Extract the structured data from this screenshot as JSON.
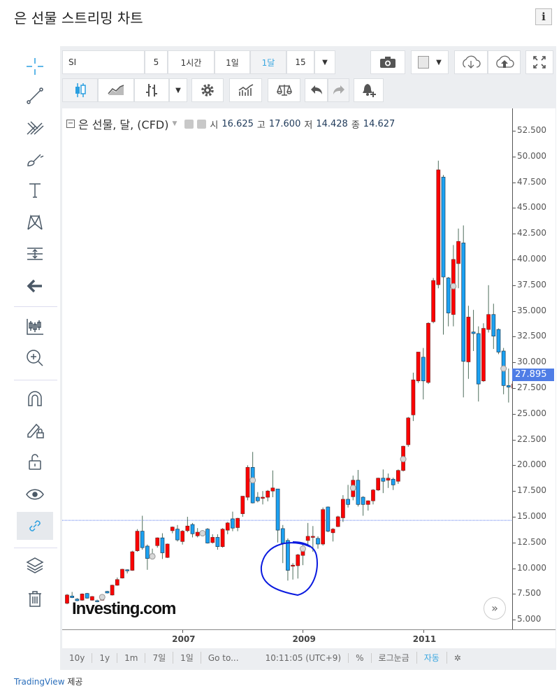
{
  "page": {
    "title": "은 선물 스트리밍 차트",
    "info_icon": "info-icon",
    "credit_link": "TradingView",
    "credit_suffix": "제공"
  },
  "toolbar": {
    "symbol": "SI",
    "intervals": [
      "5",
      "1시간",
      "1일",
      "1달",
      "15"
    ],
    "active_interval": "1달",
    "icons": [
      "camera-icon",
      "color-swatch-icon",
      "cloud-download-icon",
      "cloud-upload-icon",
      "fullscreen-icon",
      "candlestick-icon",
      "line-chart-icon",
      "bar-chart-icon",
      "settings-icon",
      "indicators-icon",
      "compare-scale-icon",
      "undo-icon",
      "redo-icon",
      "add-alert-icon"
    ]
  },
  "left_tools": [
    "crosshair-icon",
    "trend-line-icon",
    "pitchfork-icon",
    "brush-icon",
    "text-icon",
    "pattern-icon",
    "measure-icon",
    "arrow-back-icon",
    "candles-icon",
    "zoom-in-icon",
    "magnet-icon",
    "drawing-lock-icon",
    "unlock-icon",
    "eye-icon",
    "link-icon",
    "layers-icon",
    "trash-icon"
  ],
  "legend": {
    "name": "은 선물, 달, (CFD)",
    "open_label": "시",
    "open": "16.625",
    "high_label": "고",
    "high": "17.600",
    "low_label": "저",
    "low": "14.428",
    "close_label": "종",
    "close": "14.627"
  },
  "price_tag": "27.895",
  "watermark": "Investing.com",
  "bottom_bar": {
    "items": [
      "10y",
      "1y",
      "1m",
      "7일",
      "1일",
      "Go to...",
      "10:11:05 (UTC+9)",
      "%",
      "로그눈금",
      "자동"
    ],
    "active": "자동"
  },
  "colors": {
    "up": "#ff0000",
    "down": "#1ba1f2",
    "wick": "#4e6e5c",
    "annotation": "#0a1adf",
    "hline": "#5577ee",
    "accent": "#3aa7e0"
  },
  "chart_data": {
    "type": "candlestick",
    "ylim": [
      5,
      52.5
    ],
    "y_ticks": [
      "52.500",
      "50.000",
      "47.500",
      "45.000",
      "42.500",
      "40.000",
      "37.500",
      "35.000",
      "32.500",
      "30.000",
      "27.500",
      "25.000",
      "22.500",
      "20.000",
      "17.500",
      "15.000",
      "12.500",
      "10.000",
      "7.500",
      "5.000"
    ],
    "x_ticks": [
      {
        "label": "2007",
        "date": "2007-01"
      },
      {
        "label": "2009",
        "date": "2009-01"
      },
      {
        "label": "2011",
        "date": "2011-01"
      }
    ],
    "horizontal_line": 14.65,
    "annotation": "hand-drawn circle around 2008-10 to 2009-01 lows",
    "event_markers": [
      {
        "date": "2005-09",
        "value": 7.2
      },
      {
        "date": "2006-07",
        "value": 11.15
      },
      {
        "date": "2007-05",
        "value": 13.4
      },
      {
        "date": "2008-03",
        "value": 18.55
      },
      {
        "date": "2009-01",
        "value": 11.9
      },
      {
        "date": "2009-11",
        "value": 17.8
      },
      {
        "date": "2010-09",
        "value": 20.6
      },
      {
        "date": "2011-07",
        "value": 37.4
      },
      {
        "date": "2012-05",
        "value": 29.4
      }
    ],
    "fields": [
      "date",
      "open",
      "high",
      "low",
      "close"
    ],
    "candles": [
      [
        "2005-02",
        6.6,
        7.5,
        6.5,
        7.4
      ],
      [
        "2005-03",
        7.3,
        7.7,
        7.1,
        7.15
      ],
      [
        "2005-04",
        7.0,
        7.1,
        6.8,
        6.85
      ],
      [
        "2005-05",
        6.9,
        7.55,
        6.85,
        7.5
      ],
      [
        "2005-06",
        7.55,
        7.6,
        7.05,
        7.1
      ],
      [
        "2005-07",
        6.9,
        7.3,
        6.85,
        7.25
      ],
      [
        "2005-08",
        6.85,
        6.95,
        6.7,
        6.8
      ],
      [
        "2005-09",
        6.9,
        7.45,
        6.85,
        7.4
      ],
      [
        "2005-10",
        7.75,
        7.8,
        7.55,
        7.6
      ],
      [
        "2005-11",
        7.4,
        8.4,
        7.35,
        8.35
      ],
      [
        "2005-12",
        8.35,
        9.1,
        8.3,
        8.9
      ],
      [
        "2006-01",
        9.05,
        9.95,
        9.0,
        9.9
      ],
      [
        "2006-02",
        9.85,
        9.9,
        9.5,
        9.75
      ],
      [
        "2006-03",
        9.8,
        11.7,
        9.75,
        11.6
      ],
      [
        "2006-04",
        11.7,
        13.8,
        11.6,
        13.6
      ],
      [
        "2006-05",
        13.6,
        15.1,
        11.8,
        12.0
      ],
      [
        "2006-06",
        12.15,
        12.3,
        9.85,
        10.95
      ],
      [
        "2006-07",
        11.4,
        11.9,
        10.9,
        11.2
      ],
      [
        "2006-08",
        12.2,
        13.0,
        12.0,
        12.95
      ],
      [
        "2006-09",
        12.95,
        13.4,
        10.9,
        11.5
      ],
      [
        "2006-10",
        11.05,
        12.4,
        11.0,
        12.35
      ],
      [
        "2006-11",
        13.65,
        14.05,
        13.4,
        14.0
      ],
      [
        "2006-12",
        13.8,
        14.2,
        12.6,
        12.75
      ],
      [
        "2007-01",
        12.6,
        13.7,
        12.3,
        13.6
      ],
      [
        "2007-02",
        13.65,
        15.0,
        13.5,
        14.1
      ],
      [
        "2007-03",
        14.25,
        14.4,
        13.0,
        13.35
      ],
      [
        "2007-04",
        13.15,
        13.9,
        13.0,
        13.5
      ],
      [
        "2007-05",
        13.4,
        13.5,
        13.1,
        13.3
      ],
      [
        "2007-06",
        13.8,
        13.9,
        12.4,
        12.45
      ],
      [
        "2007-07",
        12.5,
        13.3,
        12.4,
        13.0
      ],
      [
        "2007-08",
        13.0,
        13.3,
        11.8,
        12.1
      ],
      [
        "2007-09",
        12.1,
        13.9,
        12.0,
        13.8
      ],
      [
        "2007-10",
        13.7,
        14.5,
        13.3,
        14.4
      ],
      [
        "2007-11",
        14.8,
        15.5,
        13.6,
        13.9
      ],
      [
        "2007-12",
        13.95,
        14.9,
        13.6,
        14.85
      ],
      [
        "2008-01",
        15.3,
        17.0,
        15.0,
        17.0
      ],
      [
        "2008-02",
        16.9,
        20.0,
        16.6,
        19.8
      ],
      [
        "2008-03",
        19.8,
        21.3,
        16.3,
        16.35
      ],
      [
        "2008-04",
        16.9,
        17.4,
        16.4,
        16.55
      ],
      [
        "2008-05",
        16.85,
        17.5,
        16.2,
        16.9
      ],
      [
        "2008-06",
        16.9,
        17.6,
        16.5,
        17.5
      ],
      [
        "2008-07",
        17.5,
        19.5,
        16.9,
        17.8
      ],
      [
        "2008-08",
        17.7,
        17.7,
        12.5,
        13.7
      ],
      [
        "2008-09",
        13.85,
        14.2,
        10.5,
        12.45
      ],
      [
        "2008-10",
        12.7,
        12.9,
        8.8,
        9.8
      ],
      [
        "2008-11",
        10.3,
        10.5,
        8.9,
        10.3
      ],
      [
        "2008-12",
        10.25,
        11.4,
        9.0,
        11.3
      ],
      [
        "2009-01",
        11.25,
        12.3,
        10.3,
        12.1
      ],
      [
        "2009-02",
        12.7,
        14.4,
        12.2,
        13.1
      ],
      [
        "2009-03",
        13.1,
        14.1,
        11.6,
        13.1
      ],
      [
        "2009-04",
        12.9,
        13.1,
        11.9,
        12.35
      ],
      [
        "2009-05",
        12.35,
        15.9,
        12.2,
        15.7
      ],
      [
        "2009-06",
        15.95,
        16.0,
        13.5,
        13.6
      ],
      [
        "2009-07",
        13.45,
        13.9,
        12.6,
        13.8
      ],
      [
        "2009-08",
        14.05,
        15.1,
        14.0,
        15.0
      ],
      [
        "2009-09",
        14.9,
        17.1,
        14.5,
        16.7
      ],
      [
        "2009-10",
        16.7,
        18.1,
        15.9,
        16.2
      ],
      [
        "2009-11",
        16.95,
        19.0,
        16.6,
        18.55
      ],
      [
        "2009-12",
        18.55,
        19.55,
        16.0,
        16.2
      ],
      [
        "2010-01",
        16.9,
        17.0,
        15.1,
        16.2
      ],
      [
        "2010-02",
        16.2,
        16.6,
        15.6,
        16.55
      ],
      [
        "2010-03",
        16.55,
        17.7,
        16.2,
        17.6
      ],
      [
        "2010-04",
        17.6,
        18.8,
        17.5,
        18.75
      ],
      [
        "2010-05",
        18.75,
        19.6,
        17.3,
        18.45
      ],
      [
        "2010-06",
        18.55,
        19.2,
        17.8,
        18.75
      ],
      [
        "2010-07",
        18.65,
        18.8,
        17.6,
        18.1
      ],
      [
        "2010-08",
        18.45,
        19.6,
        18.2,
        19.5
      ],
      [
        "2010-09",
        19.5,
        21.9,
        19.4,
        21.85
      ],
      [
        "2010-10",
        22.0,
        24.7,
        21.8,
        24.6
      ],
      [
        "2010-11",
        24.9,
        29.0,
        24.3,
        28.3
      ],
      [
        "2010-12",
        28.2,
        31.0,
        28.0,
        31.0
      ],
      [
        "2011-01",
        30.5,
        31.4,
        26.4,
        28.2
      ],
      [
        "2011-02",
        28.05,
        33.9,
        27.9,
        33.8
      ],
      [
        "2011-03",
        33.95,
        38.2,
        33.8,
        37.95
      ],
      [
        "2011-04",
        37.55,
        49.6,
        37.2,
        48.7
      ],
      [
        "2011-05",
        48.0,
        48.2,
        32.7,
        38.3
      ],
      [
        "2011-06",
        38.2,
        38.3,
        33.5,
        34.8
      ],
      [
        "2011-07",
        34.65,
        41.4,
        33.5,
        40.0
      ],
      [
        "2011-08",
        39.6,
        43.0,
        37.2,
        41.75
      ],
      [
        "2011-09",
        41.6,
        43.3,
        26.6,
        30.1
      ],
      [
        "2011-10",
        30.05,
        35.5,
        28.4,
        34.4
      ],
      [
        "2011-11",
        32.95,
        35.1,
        31.1,
        32.8
      ],
      [
        "2011-12",
        32.8,
        33.5,
        26.2,
        27.9
      ],
      [
        "2012-01",
        28.2,
        33.8,
        28.1,
        33.3
      ],
      [
        "2012-02",
        33.2,
        37.5,
        32.9,
        34.65
      ],
      [
        "2012-03",
        34.65,
        35.7,
        31.3,
        32.55
      ],
      [
        "2012-04",
        33.2,
        33.3,
        30.8,
        31.0
      ],
      [
        "2012-05",
        31.1,
        31.4,
        26.9,
        27.75
      ],
      [
        "2012-06",
        27.75,
        29.4,
        26.1,
        27.6
      ],
      [
        "2012-07",
        27.5,
        28.0,
        27.4,
        27.9
      ]
    ]
  }
}
